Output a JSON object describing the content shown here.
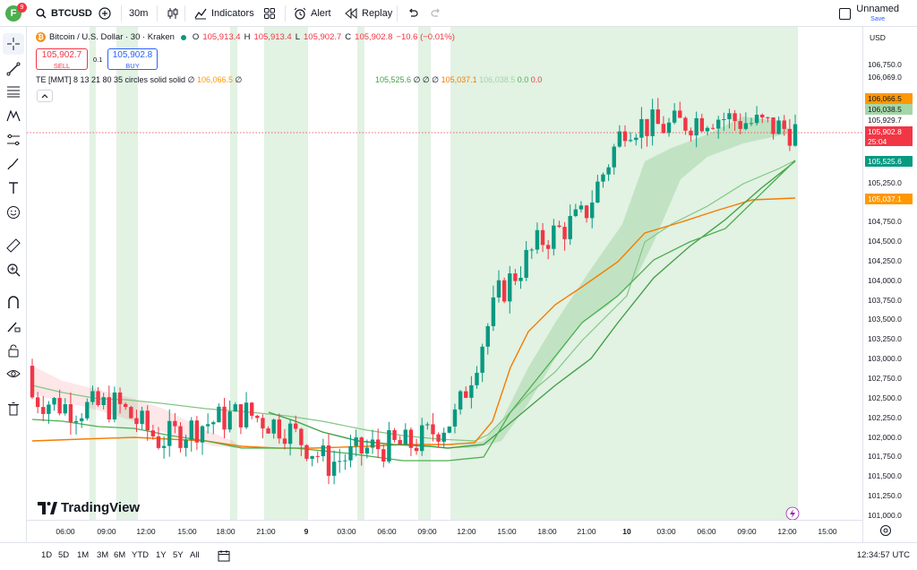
{
  "topbar": {
    "avatar_letter": "F",
    "notification_count": "9",
    "symbol": "BTCUSD",
    "interval": "30m",
    "indicators_label": "Indicators",
    "alert_label": "Alert",
    "replay_label": "Replay",
    "layout_name": "Unnamed",
    "layout_status": "Save"
  },
  "legend": {
    "title": "Bitcoin / U.S. Dollar · 30 · Kraken",
    "o_label": "O",
    "o_value": "105,913.4",
    "h_label": "H",
    "h_value": "105,913.4",
    "l_label": "L",
    "l_value": "105,902.7",
    "c_label": "C",
    "c_value": "105,902.8",
    "change": "−10.6 (−0.01%)",
    "sell_price": "105,902.7",
    "sell_label": "SELL",
    "buy_price": "105,902.8",
    "buy_label": "BUY",
    "spread": "0.1",
    "indicator_name": "TE [MMT] 8 13 21 80 35 circles solid solid",
    "indicator_flag": "∅",
    "indicator_v1": "106,066.5",
    "indicator_v1_flag": "∅",
    "indicator_v2": "105,525.6",
    "indicator_v2_flags": "∅ ∅ ∅",
    "indicator_v3": "105,037.1",
    "indicator_v4": "106,038.5",
    "indicator_v5": "0.0",
    "indicator_v6": "0.0",
    "collapse_icon": "chevron-up"
  },
  "watermark": "TradingView",
  "price_axis": {
    "currency": "USD",
    "ticks": [
      "106,750.0",
      "106,069.0",
      "106,066.5",
      "106,038.5",
      "105,929.7",
      "105,902.8",
      "105,525.6",
      "105,250.0",
      "105,037.1",
      "104,750.0",
      "104,500.0",
      "104,250.0",
      "104,000.0",
      "103,750.0",
      "103,500.0",
      "103,250.0",
      "103,000.0",
      "102,750.0",
      "102,500.0",
      "102,250.0",
      "102,000.0",
      "101,750.0",
      "101,500.0",
      "101,250.0",
      "101,000.0"
    ],
    "countdown": "25:04",
    "label_colors": {
      "red": "#f23645",
      "green": "#089981",
      "light_green": "#4caf50",
      "orange": "#ff9800",
      "mint": "#a5d6a7"
    }
  },
  "time_axis": {
    "ticks": [
      "06:00",
      "09:00",
      "12:00",
      "15:00",
      "18:00",
      "21:00",
      "9",
      "03:00",
      "06:00",
      "09:00",
      "12:00",
      "15:00",
      "18:00",
      "21:00",
      "10",
      "03:00",
      "06:00",
      "09:00",
      "12:00",
      "15:00"
    ]
  },
  "bottombar": {
    "ranges": [
      "1D",
      "5D",
      "1M",
      "3M",
      "6M",
      "YTD",
      "1Y",
      "5Y",
      "All"
    ],
    "clock": "12:34:57 UTC"
  },
  "chart_data": {
    "type": "candlestick",
    "symbol": "BTCUSD",
    "interval": "30m",
    "ylim": [
      101000,
      106750
    ],
    "x": [
      "06:00",
      "09:00",
      "12:00",
      "15:00",
      "18:00",
      "21:00",
      "9",
      "03:00",
      "06:00",
      "09:00",
      "12:00",
      "15:00",
      "18:00",
      "21:00",
      "10",
      "03:00",
      "06:00",
      "09:00",
      "12:00"
    ],
    "close_series": [
      102500,
      102350,
      102400,
      101950,
      102150,
      102300,
      102100,
      101650,
      101850,
      101900,
      102250,
      103800,
      104500,
      104800,
      106000,
      105950,
      106100,
      106000,
      105903
    ],
    "colors": {
      "up": "#089981",
      "down": "#f23645",
      "ma_orange": "#f57c00",
      "ma_green": "#43a047",
      "band_green": "#4caf50"
    }
  }
}
